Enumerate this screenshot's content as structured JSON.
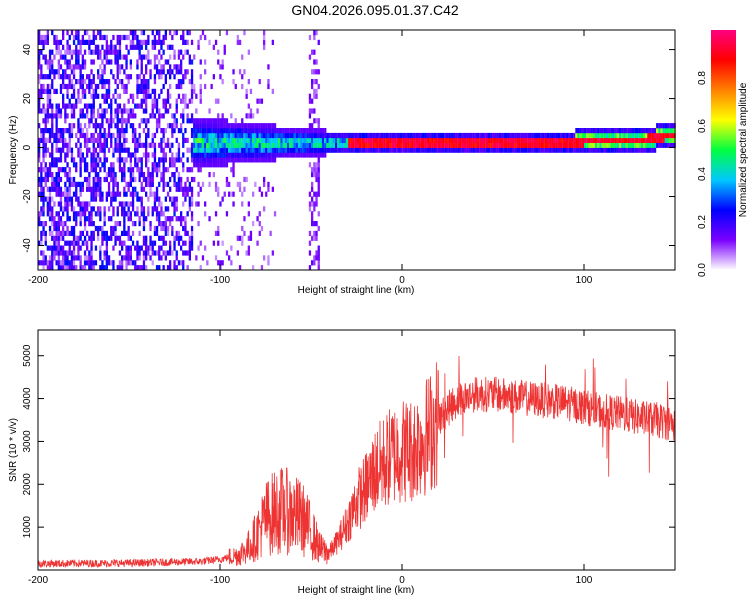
{
  "title": "GN04.2026.095.01.37.C42",
  "chart_data": [
    {
      "type": "heatmap",
      "xlabel": "Height of straight line (km)",
      "ylabel": "Frequency (Hz)",
      "xlim": [
        -200,
        150
      ],
      "ylim": [
        -50,
        48
      ],
      "xticks": [
        -200,
        -100,
        0,
        100
      ],
      "yticks": [
        -40,
        -20,
        0,
        20,
        40
      ],
      "colorbar": {
        "label": "Normalized spectral amplitude",
        "range": [
          0,
          1
        ],
        "ticks": [
          "0.0",
          "0.2",
          "0.4",
          "0.6",
          "0.8"
        ],
        "colormap": [
          "#ffffff",
          "#7a00ff",
          "#0000ff",
          "#00c8ff",
          "#00ff40",
          "#ffff00",
          "#ff8000",
          "#ff0000",
          "#ff0080"
        ]
      },
      "regions": [
        {
          "x_range": [
            -200,
            -115
          ],
          "description": "broadband noise",
          "level": 0.12
        },
        {
          "x_range": [
            -115,
            -30
          ],
          "description": "wide signal band",
          "freq_halfwidth": 8,
          "level": 0.4
        },
        {
          "x_range": [
            -30,
            150
          ],
          "description": "narrow carrier near 0 Hz",
          "level": 0.9
        }
      ]
    },
    {
      "type": "line",
      "xlabel": "Height of straight line (km)",
      "ylabel": "SNR (10 * v/v)",
      "xlim": [
        -200,
        150
      ],
      "ylim": [
        0,
        5600
      ],
      "xticks": [
        -200,
        -100,
        0,
        100
      ],
      "yticks": [
        1000,
        2000,
        3000,
        4000,
        5000
      ],
      "series": [
        {
          "name": "SNR",
          "color": "#ee3333",
          "envelope": {
            "x": [
              -200,
              -150,
              -110,
              -100,
              -90,
              -85,
              -80,
              -75,
              -70,
              -65,
              -60,
              -55,
              -50,
              -45,
              -40,
              -35,
              -30,
              -25,
              -20,
              -15,
              -10,
              -5,
              0,
              5,
              10,
              15,
              20,
              25,
              30,
              40,
              50,
              60,
              70,
              80,
              90,
              100,
              110,
              120,
              130,
              140,
              150
            ],
            "y": [
              150,
              160,
              200,
              250,
              350,
              500,
              800,
              1200,
              1350,
              1400,
              1300,
              1200,
              900,
              500,
              400,
              700,
              1100,
              1600,
              1900,
              2300,
              2500,
              2700,
              2800,
              2800,
              3000,
              3200,
              3500,
              3750,
              3950,
              4100,
              4100,
              4050,
              4000,
              3950,
              3900,
              3800,
              3700,
              3650,
              3550,
              3500,
              3400
            ]
          }
        }
      ]
    }
  ]
}
